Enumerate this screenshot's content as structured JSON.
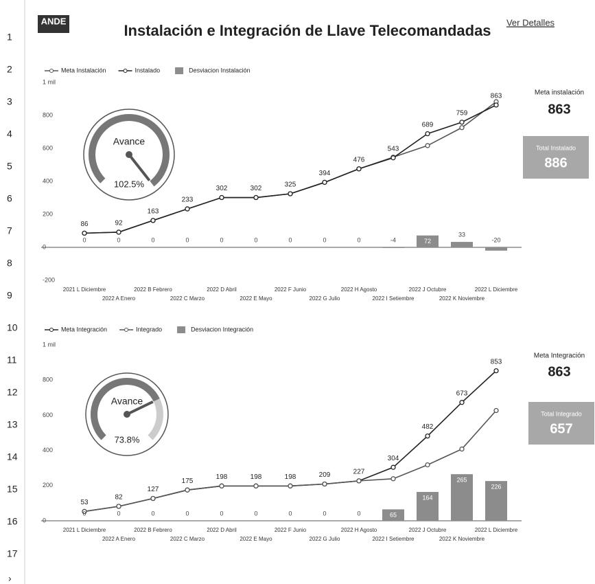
{
  "header": {
    "logo": "ANDE",
    "title": "Instalación e Integración de Llave Telecomandadas",
    "link": "Ver Detalles"
  },
  "row_numbers": [
    1,
    2,
    3,
    4,
    5,
    6,
    7,
    8,
    9,
    10,
    11,
    12,
    13,
    14,
    15,
    16,
    17
  ],
  "expand": "›",
  "chart_data": [
    {
      "type": "combo",
      "categories": [
        "2021 L Diciembre",
        "2022 A Enero",
        "2022 B Febrero",
        "2022 C Marzo",
        "2022 D Abril",
        "2022 E Mayo",
        "2022 F Junio",
        "2022 G Julio",
        "2022 H Agosto",
        "2022 I Setiembre",
        "2022 J Octubre",
        "2022 K Noviembre",
        "2022 L Diciembre"
      ],
      "series": [
        {
          "name": "Meta Instalación",
          "type": "line",
          "color": "#555555",
          "values": [
            86,
            92,
            163,
            233,
            302,
            302,
            325,
            394,
            476,
            547,
            617,
            726,
            883
          ]
        },
        {
          "name": "Instalado",
          "type": "line",
          "color": "#222222",
          "data_labels": true,
          "values": [
            86,
            92,
            163,
            233,
            302,
            302,
            325,
            394,
            476,
            543,
            689,
            759,
            863
          ]
        },
        {
          "name": "Desviacion Instalación",
          "type": "bar",
          "color": "#8c8c8c",
          "data_labels": true,
          "values": [
            0,
            0,
            0,
            0,
            0,
            0,
            0,
            0,
            0,
            -4,
            72,
            33,
            -20
          ]
        }
      ],
      "ylim": [
        -200,
        1000
      ],
      "yticks": [
        -200,
        0,
        200,
        400,
        600,
        800,
        {
          "value": 1000,
          "label": "1 mil"
        }
      ],
      "gauge": {
        "title": "Avance",
        "value": 102.5,
        "value_label": "102.5%"
      },
      "kpis": [
        {
          "label": "Meta instalación",
          "value": 863
        },
        {
          "label": "Total Instalado",
          "value": 886
        }
      ]
    },
    {
      "type": "combo",
      "categories": [
        "2021 L Diciembre",
        "2022 A Enero",
        "2022 B Febrero",
        "2022 C Marzo",
        "2022 D Abril",
        "2022 E Mayo",
        "2022 F Junio",
        "2022 G Julio",
        "2022 H Agosto",
        "2022 I Setiembre",
        "2022 J Octubre",
        "2022 K Noviembre",
        "2022 L Diciembre"
      ],
      "series": [
        {
          "name": "Meta Integración",
          "type": "line",
          "color": "#222222",
          "data_labels": true,
          "values": [
            53,
            82,
            127,
            175,
            198,
            198,
            198,
            209,
            227,
            304,
            482,
            673,
            853
          ]
        },
        {
          "name": "Integrado",
          "type": "line",
          "color": "#555555",
          "values": [
            53,
            82,
            127,
            175,
            198,
            198,
            198,
            209,
            227,
            239,
            318,
            408,
            627
          ]
        },
        {
          "name": "Desviacion Integración",
          "type": "bar",
          "color": "#8c8c8c",
          "data_labels": true,
          "values": [
            0,
            0,
            0,
            0,
            0,
            0,
            0,
            0,
            0,
            65,
            164,
            265,
            226
          ]
        }
      ],
      "ylim": [
        0,
        1000
      ],
      "yticks": [
        0,
        200,
        400,
        600,
        800,
        {
          "value": 1000,
          "label": "1 mil"
        }
      ],
      "gauge": {
        "title": "Avance",
        "value": 73.8,
        "value_label": "73.8%"
      },
      "kpis": [
        {
          "label": "Meta Integración",
          "value": 863
        },
        {
          "label": "Total Integrado",
          "value": 657
        }
      ]
    }
  ]
}
